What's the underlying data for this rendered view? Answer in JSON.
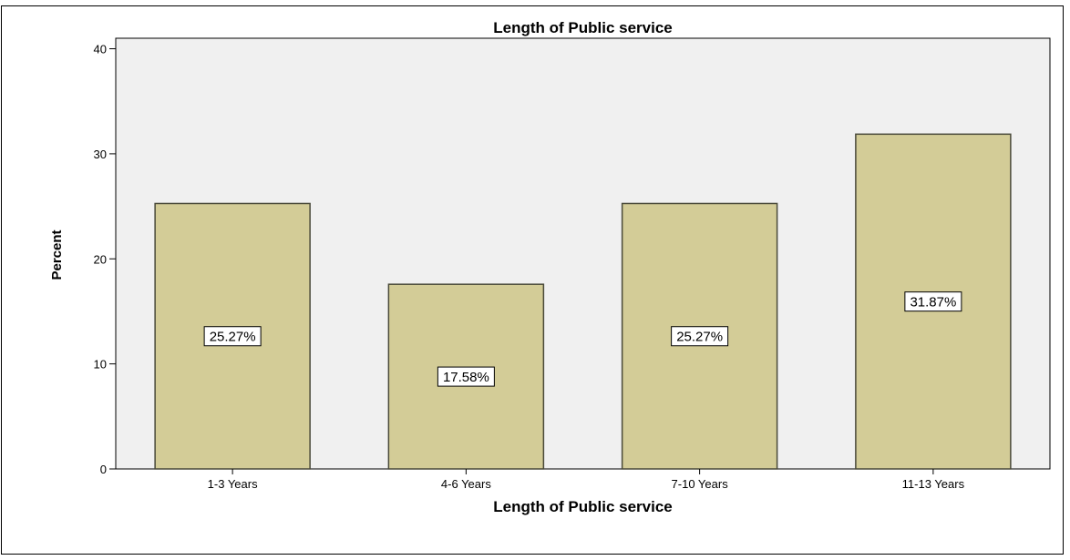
{
  "chart_data": {
    "type": "bar",
    "title": "Length of Public service",
    "xlabel": "Length of Public service",
    "ylabel": "Percent",
    "categories": [
      "1-3 Years",
      "4-6 Years",
      "7-10 Years",
      "11-13 Years"
    ],
    "values": [
      25.27,
      17.58,
      25.27,
      31.87
    ],
    "data_labels": [
      "25.27%",
      "17.58%",
      "25.27%",
      "31.87%"
    ],
    "yticks": [
      0,
      10,
      20,
      30,
      40
    ],
    "ylim": [
      0,
      41
    ],
    "grid": false,
    "colors": {
      "bar_fill": "#d3cc97",
      "bar_stroke": "#4a4a3a",
      "plot_background": "#f0f0f0"
    }
  }
}
